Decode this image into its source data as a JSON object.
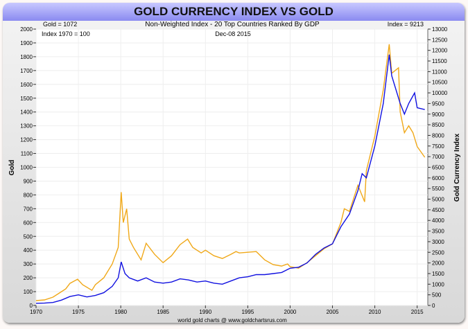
{
  "chart_data": {
    "type": "line",
    "title": "GOLD CURRENCY INDEX VS GOLD",
    "subtitle": "Non-Weighted Index - 20 Top Countries Ranked By GDP",
    "date": "Dec-08  2015",
    "gold_label": "Gold = 1072",
    "index_label": "Index = 9213",
    "base_label": "Index 1970 = 100",
    "ylabel": "Gold",
    "y2label": "Gold Currency Index",
    "footer": "world gold charts @ www.goldchartsrus.com",
    "xlim": [
      1970,
      2016
    ],
    "ylim": [
      0,
      2000
    ],
    "y2lim": [
      0,
      13000
    ],
    "xticks": [
      1970,
      1975,
      1980,
      1985,
      1990,
      1995,
      2000,
      2005,
      2010,
      2015
    ],
    "yticks": [
      0,
      100,
      200,
      300,
      400,
      500,
      600,
      700,
      800,
      900,
      1000,
      1100,
      1200,
      1300,
      1400,
      1500,
      1600,
      1700,
      1800,
      1900,
      2000
    ],
    "y2ticks": [
      0,
      500,
      1000,
      1500,
      2000,
      2500,
      3000,
      3500,
      4000,
      4500,
      5000,
      5500,
      6000,
      6500,
      7000,
      7500,
      8000,
      8500,
      9000,
      9500,
      10000,
      10500,
      11000,
      11500,
      12000,
      12500,
      13000
    ],
    "series": [
      {
        "name": "Gold",
        "axis": "left",
        "color": "#f0a818",
        "x": [
          1970,
          1971,
          1972,
          1973,
          1973.5,
          1974,
          1974.9,
          1975.5,
          1976.6,
          1977,
          1978,
          1979,
          1979.7,
          1980.05,
          1980.3,
          1980.7,
          1981,
          1981.5,
          1982.4,
          1983,
          1984,
          1985,
          1986,
          1987,
          1987.9,
          1988.5,
          1989.5,
          1990,
          1991,
          1992,
          1993,
          1993.6,
          1994,
          1995,
          1996,
          1997,
          1998,
          1999,
          1999.7,
          2000,
          2001,
          2002,
          2003,
          2004,
          2005,
          2006,
          2006.4,
          2007,
          2008,
          2008.8,
          2009,
          2010,
          2011,
          2011.7,
          2012,
          2012.8,
          2013,
          2013.5,
          2014,
          2014.5,
          2015,
          2015.9
        ],
        "y": [
          35,
          40,
          60,
          100,
          120,
          160,
          190,
          150,
          110,
          150,
          200,
          300,
          420,
          820,
          600,
          700,
          480,
          420,
          330,
          450,
          370,
          310,
          360,
          440,
          480,
          420,
          380,
          400,
          360,
          340,
          370,
          390,
          380,
          385,
          390,
          330,
          295,
          285,
          300,
          280,
          270,
          310,
          360,
          410,
          445,
          600,
          700,
          680,
          870,
          750,
          975,
          1225,
          1560,
          1890,
          1680,
          1720,
          1400,
          1250,
          1300,
          1250,
          1150,
          1072
        ]
      },
      {
        "name": "Gold Currency Index",
        "axis": "right",
        "color": "#1010e0",
        "x": [
          1970,
          1971,
          1972,
          1973,
          1974,
          1975,
          1976,
          1977,
          1978,
          1979,
          1979.7,
          1980.05,
          1980.5,
          1981,
          1982,
          1983,
          1984,
          1985,
          1986,
          1987,
          1988,
          1989,
          1990,
          1991,
          1992,
          1993,
          1994,
          1995,
          1996,
          1997,
          1998,
          1999,
          2000,
          2001,
          2002,
          2003,
          2004,
          2005,
          2006,
          2007,
          2008,
          2008.5,
          2009,
          2010,
          2011,
          2011.7,
          2012,
          2013,
          2013.5,
          2014,
          2014.7,
          2015,
          2015.9
        ],
        "y": [
          100,
          110,
          140,
          250,
          420,
          500,
          400,
          470,
          600,
          900,
          1300,
          2050,
          1500,
          1300,
          1150,
          1300,
          1100,
          1050,
          1100,
          1250,
          1200,
          1100,
          1150,
          1050,
          1000,
          1150,
          1300,
          1350,
          1450,
          1450,
          1500,
          1550,
          1750,
          1800,
          2000,
          2400,
          2700,
          2900,
          3700,
          4300,
          5400,
          6200,
          6000,
          7500,
          9500,
          11800,
          10800,
          9500,
          9000,
          9500,
          10000,
          9300,
          9213
        ]
      }
    ]
  }
}
